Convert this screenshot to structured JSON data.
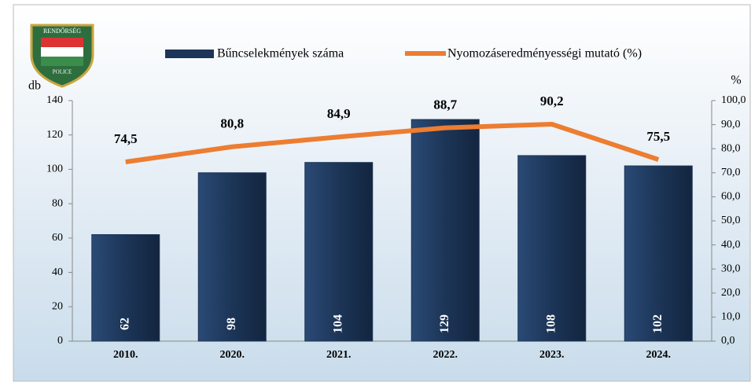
{
  "logo": {
    "top": "RENDŐRSÉG",
    "bottom": "POLICE"
  },
  "chart_data": {
    "type": "bar-line",
    "ylabel": "db",
    "y2label": "%",
    "categories": [
      "2010.",
      "2020.",
      "2021.",
      "2022.",
      "2023.",
      "2024."
    ],
    "series": [
      {
        "name": "Bűncselekmények száma",
        "type": "bar",
        "color": "#1c3557",
        "values": [
          62,
          98,
          104,
          129,
          108,
          102
        ]
      },
      {
        "name": "Nyomozáseredményességi mutató (%)",
        "type": "line",
        "axis": "y2",
        "color": "#ed7d31",
        "values": [
          74.5,
          80.8,
          84.9,
          88.7,
          90.2,
          75.5
        ],
        "value_labels": [
          "74,5",
          "80,8",
          "84,9",
          "88,7",
          "90,2",
          "75,5"
        ]
      }
    ],
    "ylim": [
      0,
      140
    ],
    "yticks": [
      0,
      20,
      40,
      60,
      80,
      100,
      120,
      140
    ],
    "y2lim": [
      0,
      100
    ],
    "y2ticks": [
      {
        "value": 0,
        "label": "0,0"
      },
      {
        "value": 10,
        "label": "10,0"
      },
      {
        "value": 20,
        "label": "20,0"
      },
      {
        "value": 30,
        "label": "30,0"
      },
      {
        "value": 40,
        "label": "40,0"
      },
      {
        "value": 50,
        "label": "50,0"
      },
      {
        "value": 60,
        "label": "60,0"
      },
      {
        "value": 70,
        "label": "70,0"
      },
      {
        "value": 80,
        "label": "80,0"
      },
      {
        "value": 90,
        "label": "90,0"
      },
      {
        "value": 100,
        "label": "100,0"
      }
    ]
  }
}
